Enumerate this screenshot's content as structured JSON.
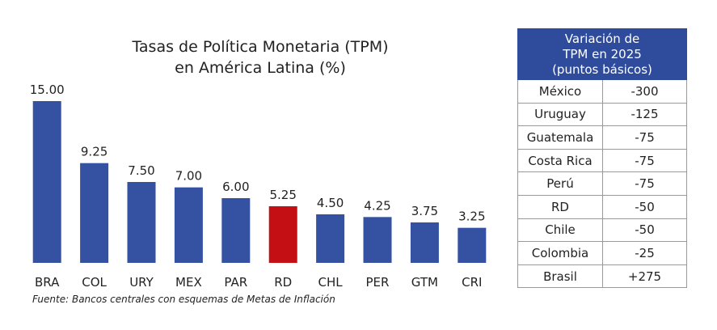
{
  "chart_data": {
    "type": "bar",
    "title": [
      "Tasas de Política Monetaria (TPM)",
      "en América Latina (%)"
    ],
    "categories": [
      "BRA",
      "COL",
      "URY",
      "MEX",
      "PAR",
      "RD",
      "CHL",
      "PER",
      "GTM",
      "CRI"
    ],
    "values": [
      15,
      9.25,
      7.5,
      7,
      6,
      5.25,
      4.5,
      4.25,
      3.75,
      3.25
    ],
    "value_labels": [
      "15.00",
      "9.25",
      "7.50",
      "7.00",
      "6.00",
      "5.25",
      "4.50",
      "4.25",
      "3.75",
      "3.25"
    ],
    "colors": [
      "#3551a2",
      "#3551a2",
      "#3551a2",
      "#3551a2",
      "#3551a2",
      "#c40f14",
      "#3551a2",
      "#3551a2",
      "#3551a2",
      "#3551a2"
    ],
    "source": "Fuente: Bancos centrales con esquemas de Metas de Inflación"
  },
  "table": {
    "header": [
      "Variación de",
      "TPM en 2025",
      "(puntos básicos)"
    ],
    "rows": [
      [
        "México",
        "-300"
      ],
      [
        "Uruguay",
        "-125"
      ],
      [
        "Guatemala",
        "-75"
      ],
      [
        "Costa Rica",
        "-75"
      ],
      [
        "Perú",
        "-75"
      ],
      [
        "RD",
        "-50"
      ],
      [
        "Chile",
        "-50"
      ],
      [
        "Colombia",
        "-25"
      ],
      [
        "Brasil",
        "+275"
      ]
    ]
  }
}
